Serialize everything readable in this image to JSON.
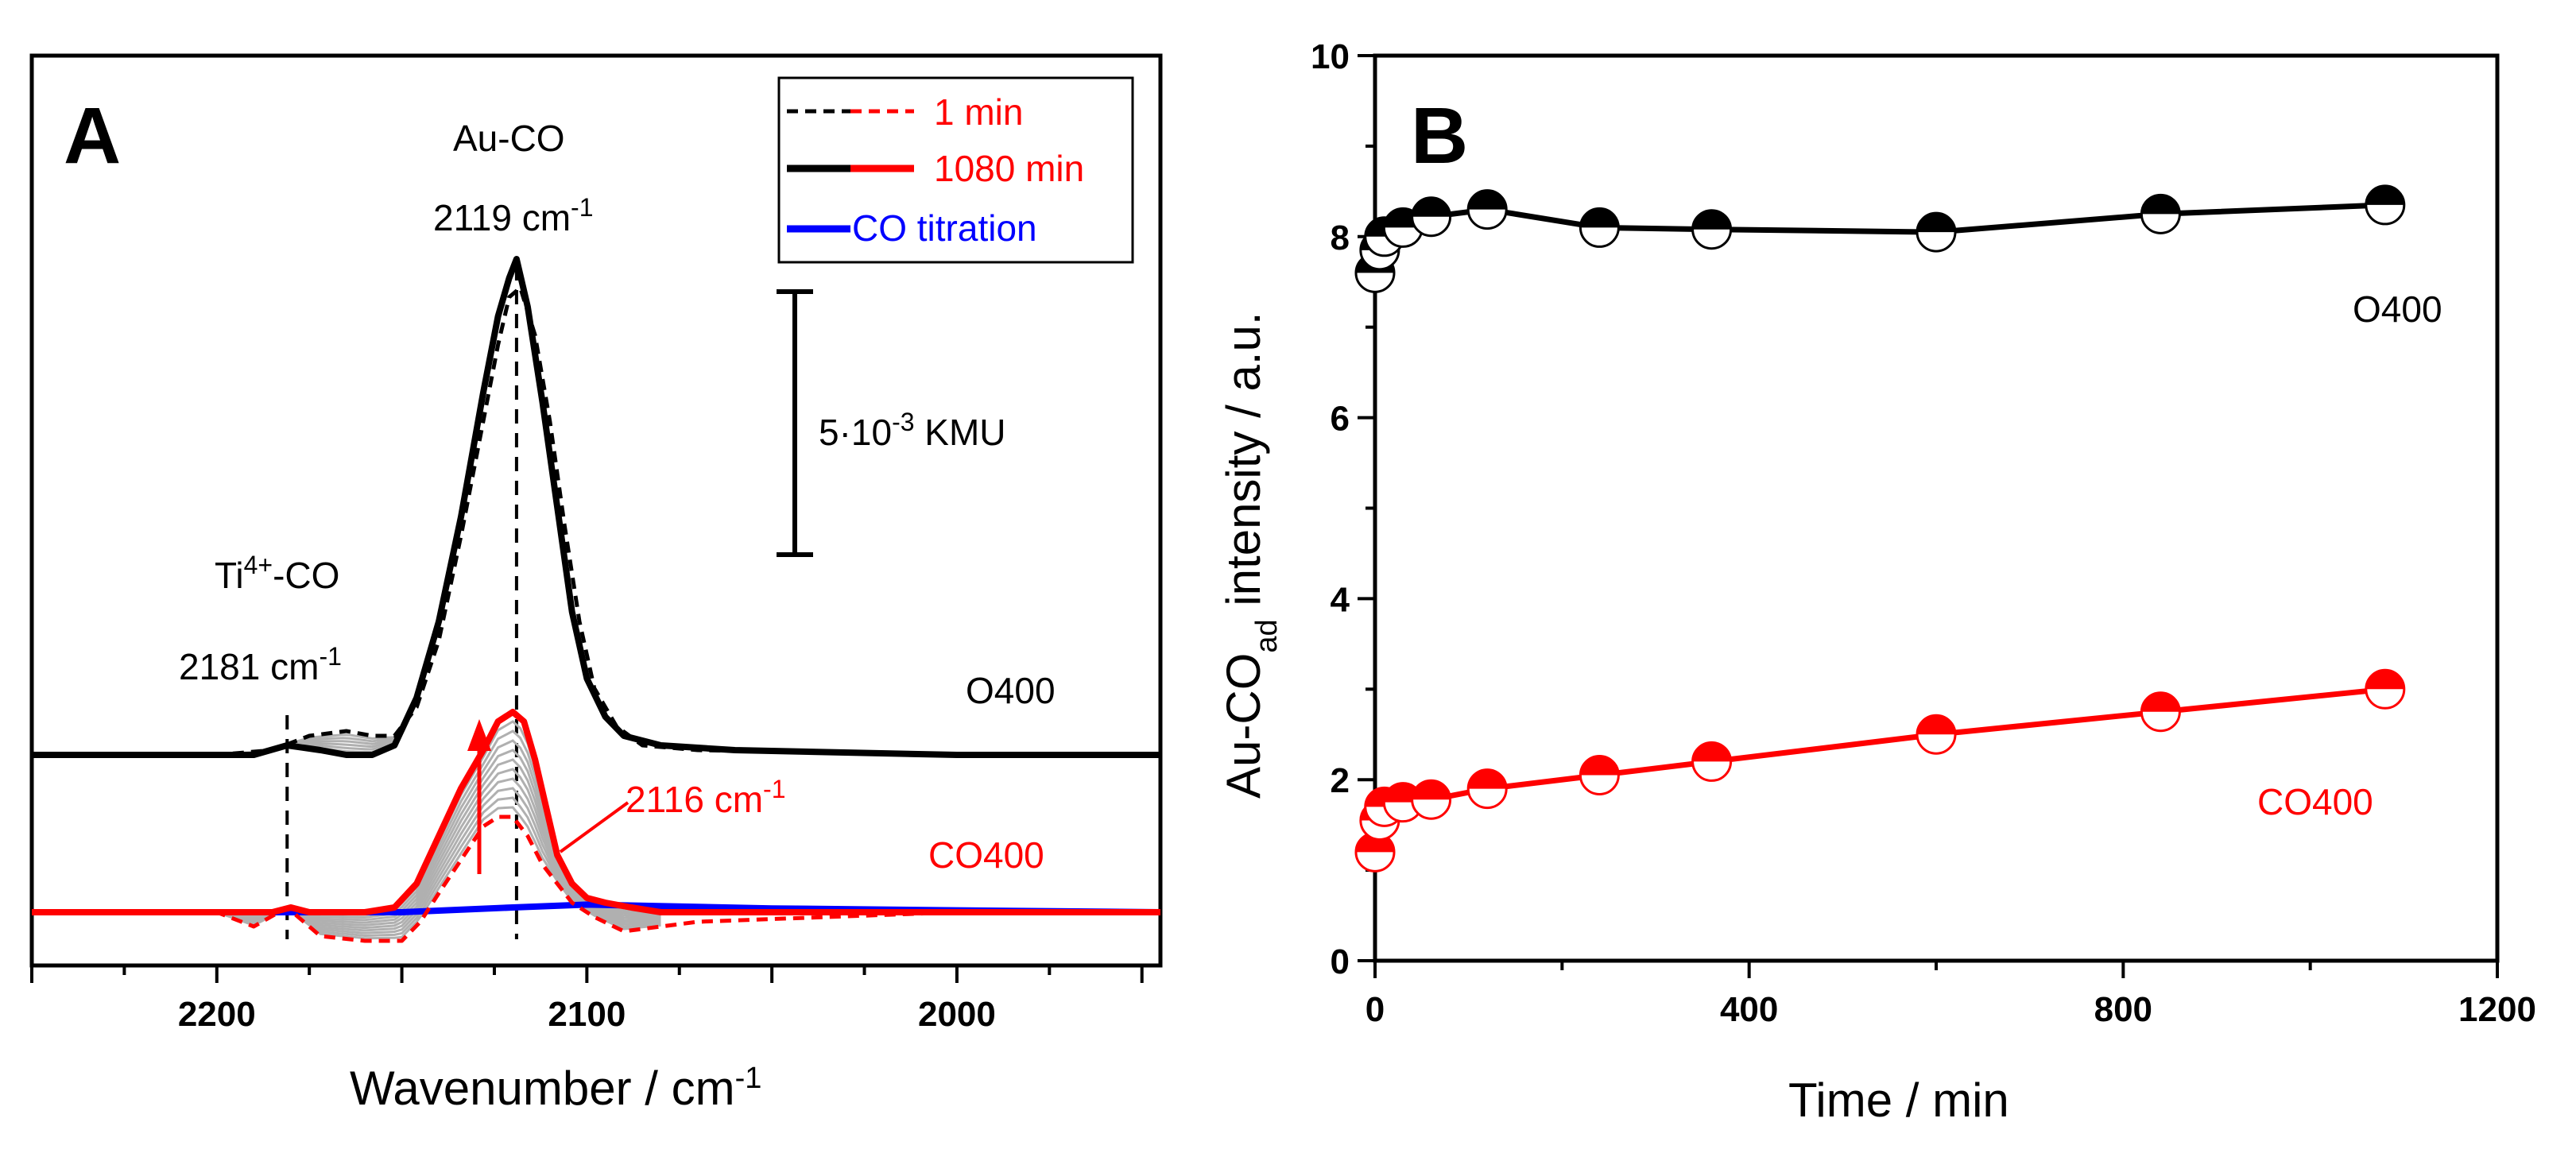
{
  "colors": {
    "black": "#000000",
    "red": "#ff0000",
    "blue": "#0000ff",
    "gray": "#b0b0b0"
  },
  "chart_data": [
    {
      "type": "line",
      "panel": "A",
      "xlabel": "Wavenumber / cm",
      "xlabel_sup": "-1",
      "xlim": [
        2250,
        1945
      ],
      "x_ticks": [
        "2200",
        "2100",
        "2000"
      ],
      "y_ticks_shown": false,
      "legend": {
        "placement": "top-right",
        "entries": [
          {
            "label": "1 min",
            "style": "dashed",
            "colors": [
              "#000000",
              "#ff0000"
            ]
          },
          {
            "label": "1080 min",
            "style": "solid",
            "colors": [
              "#000000",
              "#ff0000"
            ]
          },
          {
            "label": "CO titration",
            "style": "solid",
            "colors": [
              "#0000ff"
            ]
          }
        ]
      },
      "annotations": {
        "auco_label": "Au-CO",
        "auco_peak_main": "2119 cm",
        "auco_peak_sup": "-1",
        "ti_label_main": "Ti",
        "ti_label_sup": "4+",
        "ti_label_end": "-CO",
        "ti_peak_main": "2181 cm",
        "ti_peak_sup": "-1",
        "co400_peak_main": "2116 cm",
        "co400_peak_sup": "-1",
        "scalebar_main": "5·10",
        "scalebar_sup": "-3",
        "scalebar_end": " KMU",
        "series_o400": "O400",
        "series_co400": "CO400"
      },
      "reference_lines": [
        2181,
        2119
      ],
      "series": [
        {
          "name": "O400 1080 min",
          "color": "#000000",
          "style": "solid",
          "x": [
            2250,
            2200,
            2190,
            2181,
            2172,
            2165,
            2158,
            2152,
            2146,
            2140,
            2134,
            2128,
            2124,
            2121,
            2119,
            2116,
            2112,
            2108,
            2104,
            2100,
            2095,
            2090,
            2080,
            2060,
            2000,
            1945
          ],
          "y": [
            0,
            0,
            0,
            0.1,
            0.05,
            0,
            0,
            0.1,
            0.6,
            1.4,
            2.5,
            3.8,
            4.6,
            5.0,
            5.2,
            4.7,
            3.7,
            2.6,
            1.5,
            0.8,
            0.4,
            0.2,
            0.1,
            0.05,
            0,
            0
          ]
        },
        {
          "name": "O400 1 min",
          "color": "#000000",
          "style": "dashed",
          "x": [
            2250,
            2200,
            2185,
            2175,
            2165,
            2158,
            2152,
            2146,
            2140,
            2134,
            2128,
            2124,
            2121,
            2118,
            2114,
            2110,
            2106,
            2102,
            2098,
            2092,
            2085,
            2070,
            2000,
            1945
          ],
          "y": [
            0,
            0,
            0.05,
            0.2,
            0.25,
            0.2,
            0.2,
            0.5,
            1.2,
            2.3,
            3.5,
            4.3,
            4.8,
            4.9,
            4.4,
            3.5,
            2.4,
            1.4,
            0.7,
            0.3,
            0.1,
            0.05,
            0,
            0
          ]
        },
        {
          "name": "CO400 1080 min",
          "color": "#ff0000",
          "style": "solid",
          "x": [
            2250,
            2200,
            2185,
            2180,
            2175,
            2160,
            2152,
            2146,
            2140,
            2134,
            2128,
            2124,
            2120,
            2117,
            2114,
            2111,
            2108,
            2104,
            2100,
            2095,
            2088,
            2080,
            2060,
            2000,
            1945
          ],
          "y": [
            0,
            0,
            0,
            0.05,
            0,
            0,
            0.05,
            0.3,
            0.8,
            1.3,
            1.7,
            2.0,
            2.1,
            2.0,
            1.6,
            1.1,
            0.6,
            0.3,
            0.15,
            0.1,
            0.05,
            0,
            0,
            0,
            0
          ]
        },
        {
          "name": "CO400 1 min",
          "color": "#ff0000",
          "style": "dashed",
          "x": [
            2250,
            2200,
            2190,
            2181,
            2172,
            2160,
            2150,
            2145,
            2140,
            2134,
            2128,
            2124,
            2120,
            2116,
            2112,
            2108,
            2104,
            2098,
            2090,
            2070,
            2000,
            1945
          ],
          "y": [
            0,
            0,
            -0.15,
            0.05,
            -0.25,
            -0.3,
            -0.3,
            -0.1,
            0.2,
            0.55,
            0.9,
            1.0,
            1.0,
            0.8,
            0.5,
            0.3,
            0.1,
            -0.05,
            -0.2,
            -0.1,
            0,
            0
          ]
        },
        {
          "name": "CO titration",
          "color": "#0000ff",
          "style": "solid",
          "x": [
            2250,
            2200,
            2150,
            2120,
            2100,
            2050,
            2000,
            1945
          ],
          "y": [
            0,
            0,
            0,
            0.05,
            0.08,
            0.04,
            0.02,
            0
          ]
        }
      ]
    },
    {
      "type": "line",
      "panel": "B",
      "xlabel": "Time / min",
      "ylabel_main": "Au-CO",
      "ylabel_sub": "ad",
      "ylabel_end": " intensity / a.u.",
      "xlim": [
        0,
        1200
      ],
      "ylim": [
        0,
        10
      ],
      "x_ticks": [
        0,
        400,
        800,
        1200
      ],
      "y_ticks": [
        0,
        2,
        4,
        6,
        8,
        10
      ],
      "series": [
        {
          "name": "O400",
          "color": "#000000",
          "x": [
            0,
            5,
            10,
            30,
            60,
            120,
            240,
            360,
            600,
            840,
            1080
          ],
          "y": [
            7.6,
            7.85,
            8.0,
            8.1,
            8.22,
            8.3,
            8.1,
            8.08,
            8.05,
            8.25,
            8.35
          ]
        },
        {
          "name": "CO400",
          "color": "#ff0000",
          "x": [
            0,
            5,
            10,
            30,
            60,
            120,
            240,
            360,
            600,
            840,
            1080
          ],
          "y": [
            1.2,
            1.55,
            1.7,
            1.75,
            1.78,
            1.9,
            2.05,
            2.2,
            2.5,
            2.75,
            3.0
          ]
        }
      ]
    }
  ]
}
